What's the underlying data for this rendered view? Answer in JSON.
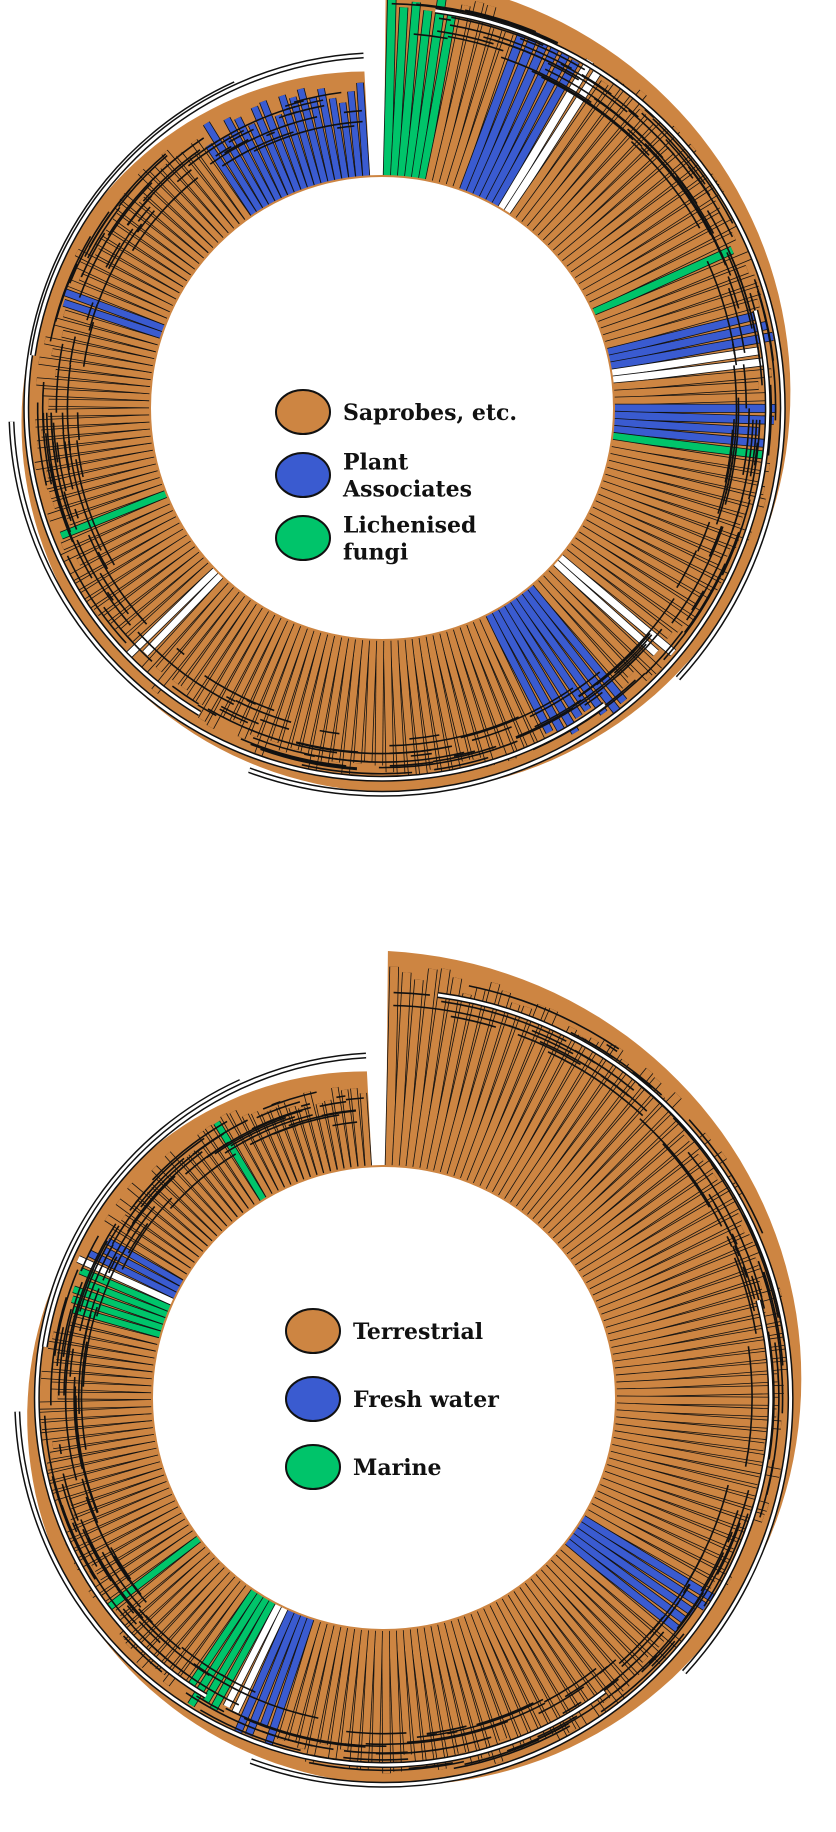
{
  "colors": {
    "orange": "#CD8542",
    "blue": "#3A5BD0",
    "green": "#00C46A",
    "white": "#FFFFFF",
    "outline": "#111111"
  },
  "top_tree": {
    "legend": [
      {
        "lines": [
          "Saprobes, etc."
        ],
        "color": "#CD8542"
      },
      {
        "lines": [
          "Plant",
          "Associates"
        ],
        "color": "#3A5BD0"
      },
      {
        "lines": [
          "Lichenised",
          "fungi"
        ],
        "color": "#00C46A"
      }
    ],
    "clades": [
      {
        "color": "#00C46A",
        "tips": 6
      },
      {
        "color": "#CD8542",
        "tips": 5
      },
      {
        "color": "#3A5BD0",
        "tips": 6
      },
      {
        "color": "#FFFFFF",
        "tips": 2
      },
      {
        "color": "#CD8542",
        "tips": 18
      },
      {
        "color": "#00C46A",
        "tips": 1
      },
      {
        "color": "#CD8542",
        "tips": 5
      },
      {
        "color": "#3A5BD0",
        "tips": 3
      },
      {
        "color": "#FFFFFF",
        "tips": 2
      },
      {
        "color": "#CD8542",
        "tips": 3
      },
      {
        "color": "#3A5BD0",
        "tips": 4
      },
      {
        "color": "#00C46A",
        "tips": 1
      },
      {
        "color": "#CD8542",
        "tips": 18
      },
      {
        "color": "#FFFFFF",
        "tips": 2
      },
      {
        "color": "#CD8542",
        "tips": 4
      },
      {
        "color": "#3A5BD0",
        "tips": 8
      },
      {
        "color": "#CD8542",
        "tips": 40
      },
      {
        "color": "#FFFFFF",
        "tips": 2
      },
      {
        "color": "#CD8542",
        "tips": 12
      },
      {
        "color": "#00C46A",
        "tips": 1
      },
      {
        "color": "#CD8542",
        "tips": 22
      },
      {
        "color": "#3A5BD0",
        "tips": 2
      },
      {
        "color": "#CD8542",
        "tips": 20
      },
      {
        "color": "#3A5BD0",
        "tips": 18
      }
    ]
  },
  "bottom_tree": {
    "legend": [
      {
        "lines": [
          "Terrestrial"
        ],
        "color": "#CD8542"
      },
      {
        "lines": [
          "Fresh water"
        ],
        "color": "#3A5BD0"
      },
      {
        "lines": [
          "Marine"
        ],
        "color": "#00C46A"
      }
    ],
    "clades": [
      {
        "color": "#CD8542",
        "tips": 70
      },
      {
        "color": "#3A5BD0",
        "tips": 5
      },
      {
        "color": "#CD8542",
        "tips": 40
      },
      {
        "color": "#3A5BD0",
        "tips": 4
      },
      {
        "color": "#FFFFFF",
        "tips": 2
      },
      {
        "color": "#00C46A",
        "tips": 4
      },
      {
        "color": "#CD8542",
        "tips": 10
      },
      {
        "color": "#00C46A",
        "tips": 1
      },
      {
        "color": "#CD8542",
        "tips": 30
      },
      {
        "color": "#00C46A",
        "tips": 5
      },
      {
        "color": "#FFFFFF",
        "tips": 1
      },
      {
        "color": "#3A5BD0",
        "tips": 3
      },
      {
        "color": "#CD8542",
        "tips": 16
      },
      {
        "color": "#00C46A",
        "tips": 1
      },
      {
        "color": "#CD8542",
        "tips": 16
      }
    ]
  }
}
